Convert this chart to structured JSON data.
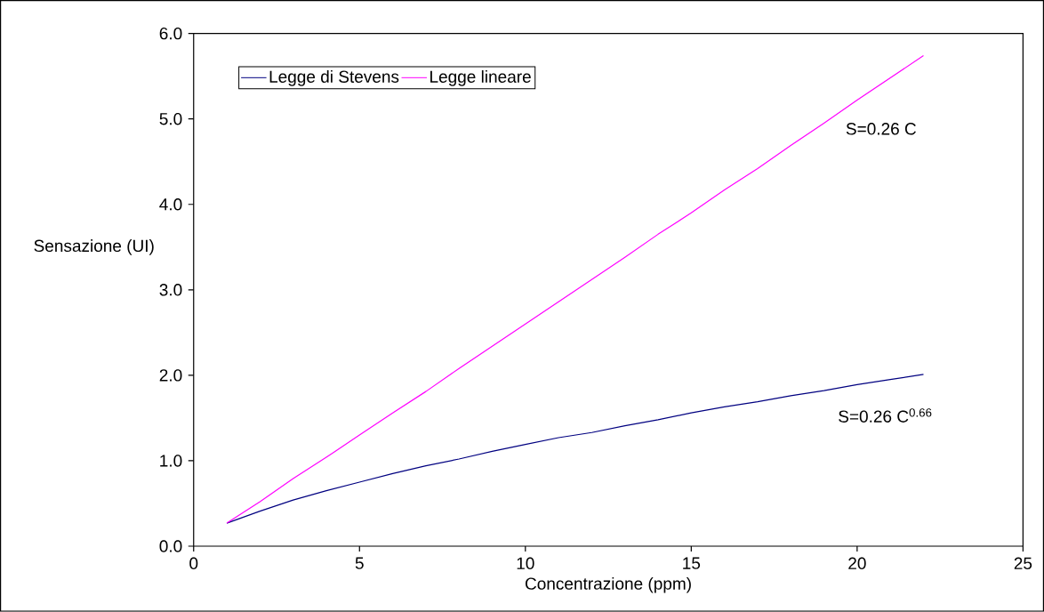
{
  "chart_data": {
    "type": "line",
    "xlabel": "Concentrazione (ppm)",
    "ylabel": "Sensazione (UI)",
    "x": [
      1,
      2,
      3,
      4,
      5,
      6,
      7,
      8,
      9,
      10,
      11,
      12,
      13,
      14,
      15,
      16,
      17,
      18,
      19,
      20,
      21,
      22
    ],
    "series": [
      {
        "name": "Legge di Stevens",
        "color": "#000080",
        "values": [
          0.27,
          0.41,
          0.54,
          0.65,
          0.75,
          0.85,
          0.94,
          1.02,
          1.11,
          1.19,
          1.27,
          1.33,
          1.41,
          1.48,
          1.56,
          1.63,
          1.69,
          1.76,
          1.82,
          1.89,
          1.95,
          2.01
        ]
      },
      {
        "name": "Legge lineare",
        "color": "#ff00ff",
        "values": [
          0.27,
          0.52,
          0.79,
          1.04,
          1.3,
          1.56,
          1.81,
          2.08,
          2.34,
          2.6,
          2.86,
          3.12,
          3.38,
          3.65,
          3.9,
          4.17,
          4.42,
          4.69,
          4.95,
          5.22,
          5.48,
          5.74
        ]
      }
    ],
    "xlim": [
      0,
      25
    ],
    "xticks": [
      0,
      5,
      10,
      15,
      20,
      25
    ],
    "ylim": [
      0,
      6
    ],
    "yticks": [
      {
        "value": 0,
        "label": "0.0"
      },
      {
        "value": 1,
        "label": "1.0"
      },
      {
        "value": 2,
        "label": "2.0"
      },
      {
        "value": 3,
        "label": "3.0"
      },
      {
        "value": 4,
        "label": "4.0"
      },
      {
        "value": 5,
        "label": "5.0"
      },
      {
        "value": 6,
        "label": "6.0"
      }
    ],
    "annotations": [
      "S=0.26 C",
      "S=0.26 C$^{0.66}$"
    ],
    "legend": "top left",
    "grid": false
  }
}
